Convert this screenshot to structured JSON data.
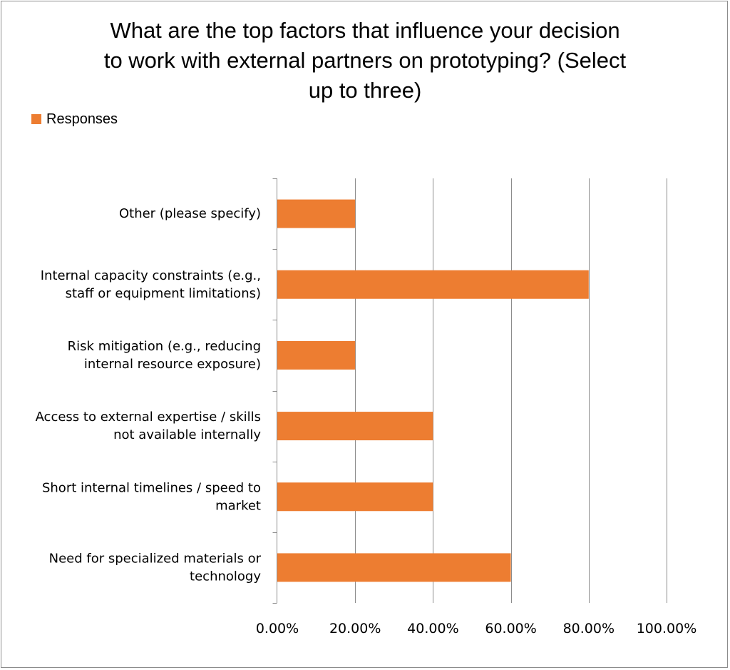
{
  "chart_data": {
    "type": "bar",
    "orientation": "horizontal",
    "title": "What are the top factors that influence your decision to work with external partners on prototyping? (Select up to three)",
    "title_lines": [
      "What are the top factors that influence your decision",
      "to work with external partners on prototyping? (Select",
      "up to three)"
    ],
    "legend": {
      "position": "top-left",
      "entries": [
        "Responses"
      ]
    },
    "series": [
      {
        "name": "Responses",
        "color": "#ed7d31",
        "values": [
          0.2,
          0.8,
          0.2,
          0.4,
          0.4,
          0.6
        ]
      }
    ],
    "categories": [
      [
        "Other (please specify)"
      ],
      [
        "Internal capacity constraints (e.g.,",
        "staff or equipment limitations)"
      ],
      [
        "Risk mitigation (e.g., reducing",
        "internal resource exposure)"
      ],
      [
        "Access to external expertise / skills",
        "not available internally"
      ],
      [
        "Short internal timelines / speed to",
        "market"
      ],
      [
        "Need for specialized materials or",
        "technology"
      ]
    ],
    "xlim": [
      0,
      1
    ],
    "x_ticks": [
      0,
      0.2,
      0.4,
      0.6,
      0.8,
      1.0
    ],
    "x_tick_labels": [
      "0.00%",
      "20.00%",
      "40.00%",
      "60.00%",
      "80.00%",
      "100.00%"
    ],
    "grid": {
      "vertical": true,
      "horizontal": false
    },
    "colors": {
      "bar": "#ed7d31",
      "grid": "#8c8c8c",
      "axis": "#8c8c8c"
    }
  }
}
